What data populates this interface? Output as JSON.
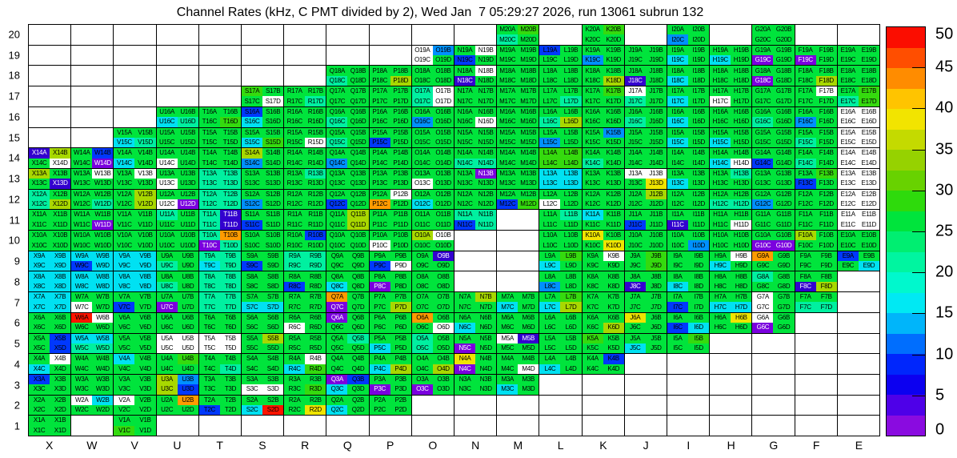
{
  "title": "Channel Rates (kHz, C PMT divided by 2), Wed Jan  7 05:29:27 2026, run 13061 subrun 132",
  "chart_data": {
    "type": "heatmap",
    "description": "PMT channel rate map; each letter+number block holds 4 channels (A,B top row; C,D bottom row). Cell color encodes rate in kHz per the right-hand color scale. White cells with labels are out-of-scale; blocks without labels are absent channels.",
    "x_categories": [
      "X",
      "W",
      "V",
      "U",
      "T",
      "S",
      "R",
      "Q",
      "P",
      "O",
      "N",
      "M",
      "L",
      "K",
      "J",
      "I",
      "H",
      "G",
      "F",
      "E"
    ],
    "y_categories": [
      20,
      19,
      18,
      17,
      16,
      15,
      14,
      13,
      12,
      11,
      10,
      9,
      8,
      7,
      6,
      5,
      4,
      3,
      2,
      1
    ],
    "cell_suffixes": [
      "A",
      "B",
      "C",
      "D"
    ],
    "colorbar": {
      "min": 0,
      "max": 50,
      "ticks": [
        0,
        5,
        10,
        15,
        20,
        25,
        30,
        35,
        40,
        45,
        50
      ],
      "bands_bottom_to_top": [
        "#8a0be0",
        "#4e00e8",
        "#0c00f0",
        "#0026fc",
        "#006efe",
        "#00b5fa",
        "#00e9f3",
        "#00f8cd",
        "#00f5a0",
        "#00ee71",
        "#00e43c",
        "#2eda0c",
        "#68d200",
        "#96d200",
        "#c4da00",
        "#f2e400",
        "#ffc400",
        "#ff8c00",
        "#ff4e00",
        "#fb0d00"
      ]
    },
    "palette": {
      "v": "#7a00de",
      "d": "#3300cf",
      "B": "#0038fd",
      "b": "#0090ff",
      "c": "#00e1f2",
      "t": "#00f0a0",
      "g": "#00e43c",
      "G": "#35da0e",
      "Y": "#a8d800",
      "y": "#efe400",
      "o": "#ff9b00",
      "r": "#ff1400",
      "w": "#ffffff"
    },
    "palette_value_hint_khz": {
      "v": 1,
      "d": 4,
      "B": 8,
      "b": 13,
      "c": 16,
      "t": 20,
      "g": 25,
      "G": 29,
      "Y": 33,
      "y": 38,
      "o": 43,
      "r": 49,
      "w": 0
    },
    "light_text_tokens": [
      "v",
      "d"
    ],
    "blocks": {
      "M20": "gGtg",
      "K20": "gGgg",
      "I20": "ggbg",
      "G20": "gggg",
      "O19": "wbwg",
      "N19": "gwBg",
      "M19": "gggg",
      "L19": "Bggg",
      "K19": "ggbg",
      "J19": "gggg",
      "I19": "ggcg",
      "H19": "ggcg",
      "G19": "ggvg",
      "F19": "ggvg",
      "E19": "gggg",
      "Q18": "ggtg",
      "P18": "gggY",
      "O18": "gggg",
      "N18": "gwdg",
      "M18": "gggg",
      "L18": "gggg",
      "K18": "gggY",
      "J18": "ggdg",
      "I18": "ggcg",
      "H18": "gggg",
      "G18": "ggvg",
      "F18": "gggY",
      "E18": "gggg",
      "S17": "Gggw",
      "R17": "gggt",
      "Q17": "gggg",
      "P17": "gggg",
      "O17": "twtw",
      "N17": "gggg",
      "M17": "gggg",
      "L17": "gggt",
      "K17": "gGgg",
      "J17": "wgtg",
      "I17": "ggcg",
      "H17": "ggwg",
      "G17": "gggg",
      "F17": "gwgg",
      "E17": "gGtG",
      "U16": "ggct",
      "T16": "gggG",
      "S16": "Bgcg",
      "R16": "gggg",
      "Q16": "ggtg",
      "P16": "gggg",
      "O16": "ggbg",
      "N16": "gggw",
      "M16": "gggg",
      "L16": "ggtY",
      "K16": "gggg",
      "J16": "ggtg",
      "I16": "ggcg",
      "H16": "gggg",
      "G16": "ggtg",
      "F16": "ggbg",
      "E16": "wwww",
      "V15": "ggct",
      "U15": "gggg",
      "T15": "gggg",
      "S15": "ggcG",
      "R15": "gggw",
      "Q15": "ggtg",
      "P15": "ggBg",
      "O15": "gggg",
      "N15": "gggg",
      "M15": "gggg",
      "L15": "ggbg",
      "K15": "gbgg",
      "J15": "gggg",
      "I15": "ggcg",
      "H15": "ggcg",
      "G15": "gggg",
      "F15": "ggtg",
      "E15": "wwww",
      "X14": "dYgw",
      "W14": "gBgv",
      "V14": "ggcg",
      "U14": "ggwg",
      "T14": "gggg",
      "S14": "Ygbg",
      "R14": "gggg",
      "Q14": "ggbg",
      "P14": "gggg",
      "O14": "gggg",
      "N14": "ggtt",
      "M14": "gggg",
      "L14": "GGGG",
      "K14": "ggtg",
      "J14": "gggg",
      "I14": "gggg",
      "H14": "ggcw",
      "G14": "ggBg",
      "F14": "ggtg",
      "E14": "wwww",
      "X13": "Yggd",
      "W13": "gwgg",
      "V13": "gwgg",
      "U13": "ggwg",
      "T13": "tttt",
      "S13": "gggg",
      "R13": "gtgg",
      "Q13": "gggg",
      "P13": "gggg",
      "O13": "ggwg",
      "N13": "gvgg",
      "M13": "gggg",
      "L13": "cccc",
      "K13": "gggg",
      "J13": "wwgy",
      "I13": "ggcg",
      "H13": "gtgg",
      "G13": "gggg",
      "F13": "gGBg",
      "E13": "wwww",
      "X12": "tgtY",
      "W12": "gggt",
      "V12": "gYgY",
      "U12": "ggwv",
      "T12": "tttt",
      "S12": "ggbg",
      "R12": "gggg",
      "Q12": "ggBg",
      "P12": "gwog",
      "O12": "ggcg",
      "N12": "gggg",
      "M12": "ggBG",
      "L12": "ggwg",
      "K12": "gggg",
      "J12": "gYgg",
      "I12": "gggg",
      "H12": "ggtt",
      "G12": "ggbg",
      "F12": "gggg",
      "E12": "wwww",
      "X11": "gggg",
      "W11": "gggv",
      "V11": "gggg",
      "U11": "tggg",
      "T11": "tdtd",
      "S11": "ggBg",
      "R11": "gggg",
      "Q11": "gYgY",
      "P11": "gggg",
      "O11": "gggg",
      "N11": "ttBt",
      "L11": "gtgg",
      "K11": "cggg",
      "J11": "ggBg",
      "I11": "ggdg",
      "H11": "gggw",
      "G11": "gggg",
      "F11": "gggg",
      "E11": "wwww",
      "X10": "gggg",
      "W10": "gggg",
      "V10": "gggg",
      "U10": "gggg",
      "T10": "tovt",
      "S10": "gggg",
      "R10": "gBgg",
      "Q10": "gggg",
      "P10": "ggwg",
      "O10": "Ywgg",
      "L10": "gggg",
      "K10": "yggy",
      "J10": "gggg",
      "I10": "gggb",
      "H10": "gggg",
      "G10": "ggvv",
      "F10": "Yggg",
      "E10": "gggg",
      "X9": "cccc",
      "W9": "ccBc",
      "V9": "cccc",
      "U9": "ggtg",
      "T9": "ttct",
      "S9": "ggBg",
      "R9": "tttt",
      "Q9": "gggg",
      "P9": "ggBw",
      "O9": "gdgg",
      "L9": "gGcg",
      "K9": "gwgg",
      "J9": "gGgG",
      "I9": "gggg",
      "H9": "gwcg",
      "G9": "oggg",
      "F9": "gggg",
      "E9": "Bggc",
      "X8": "cccc",
      "W8": "cccc",
      "V8": "cccc",
      "U8": "ggtg",
      "T8": "tttt",
      "S8": "gggg",
      "R8": "ggBg",
      "Q8": "ggcg",
      "P8": "ggvg",
      "O8": "gggg",
      "L8": "ggbg",
      "K8": "gggg",
      "J8": "ggdg",
      "I8": "ggcg",
      "H8": "gggg",
      "G8": "tggg",
      "F8": "ggdY",
      "X7": "cccc",
      "W7": "ggwg",
      "V7": "ggBg",
      "U7": "ggvg",
      "T7": "tttt",
      "S7": "ggcc",
      "R7": "gggg",
      "Q7": "ogvg",
      "P7": "gggY",
      "O7": "gggg",
      "N7": "gYgg",
      "M7": "ggcg",
      "L7": "gGcY",
      "K7": "gggg",
      "J7": "gggg",
      "I7": "ggBg",
      "H7": "ggcc",
      "G7": "wgwg",
      "F7": "ggtt",
      "X6": "gggg",
      "W6": "rwgg",
      "V6": "gggg",
      "U6": "gggg",
      "T6": "gggg",
      "S6": "gggg",
      "R6": "ggwg",
      "Q6": "vggg",
      "P6": "gggg",
      "O6": "oggw",
      "N6": "ggcg",
      "M6": "gggg",
      "L6": "gggg",
      "K6": "gggY",
      "J6": "yggg",
      "I6": "ggBc",
      "H6": "gygg",
      "G6": "wgvg",
      "X5": "gBgB",
      "W5": "cctt",
      "V5": "gggg",
      "U5": "wwww",
      "T5": "wwww",
      "S5": "gYgg",
      "R5": "gggg",
      "Q5": "gtgg",
      "P5": "ggcg",
      "O5": "tgtg",
      "N5": "ggvg",
      "M5": "wdgg",
      "L5": "gggg",
      "K5": "Gggg",
      "J5": "ggcg",
      "I5": "gGgg",
      "X4": "gwcg",
      "W4": "gggg",
      "V4": "cggg",
      "U4": "gGgg",
      "T4": "gggt",
      "S4": "gggg",
      "R4": "gwcG",
      "Q4": "gggg",
      "P4": "ggcY",
      "O4": "gggY",
      "N4": "ygvg",
      "M4": "gggw",
      "L4": "ggcg",
      "K4": "gBgg",
      "X3": "Bggg",
      "W3": "gggg",
      "V3": "gggg",
      "U3": "YbYB",
      "T3": "gggg",
      "S3": "ggww",
      "R3": "gggG",
      "Q3": "vBcg",
      "P3": "ggvg",
      "O3": "ggvg",
      "N3": "gggg",
      "M3": "ggcg",
      "X2": "gggg",
      "W2": "wcgg",
      "V2": "wggg",
      "U2": "gogg",
      "T2": "ggBg",
      "S2": "ggcr",
      "R2": "gggy",
      "Q2": "ggcg",
      "P2": "gggg",
      "X1": "gggg",
      "V1": "ggGg"
    }
  }
}
